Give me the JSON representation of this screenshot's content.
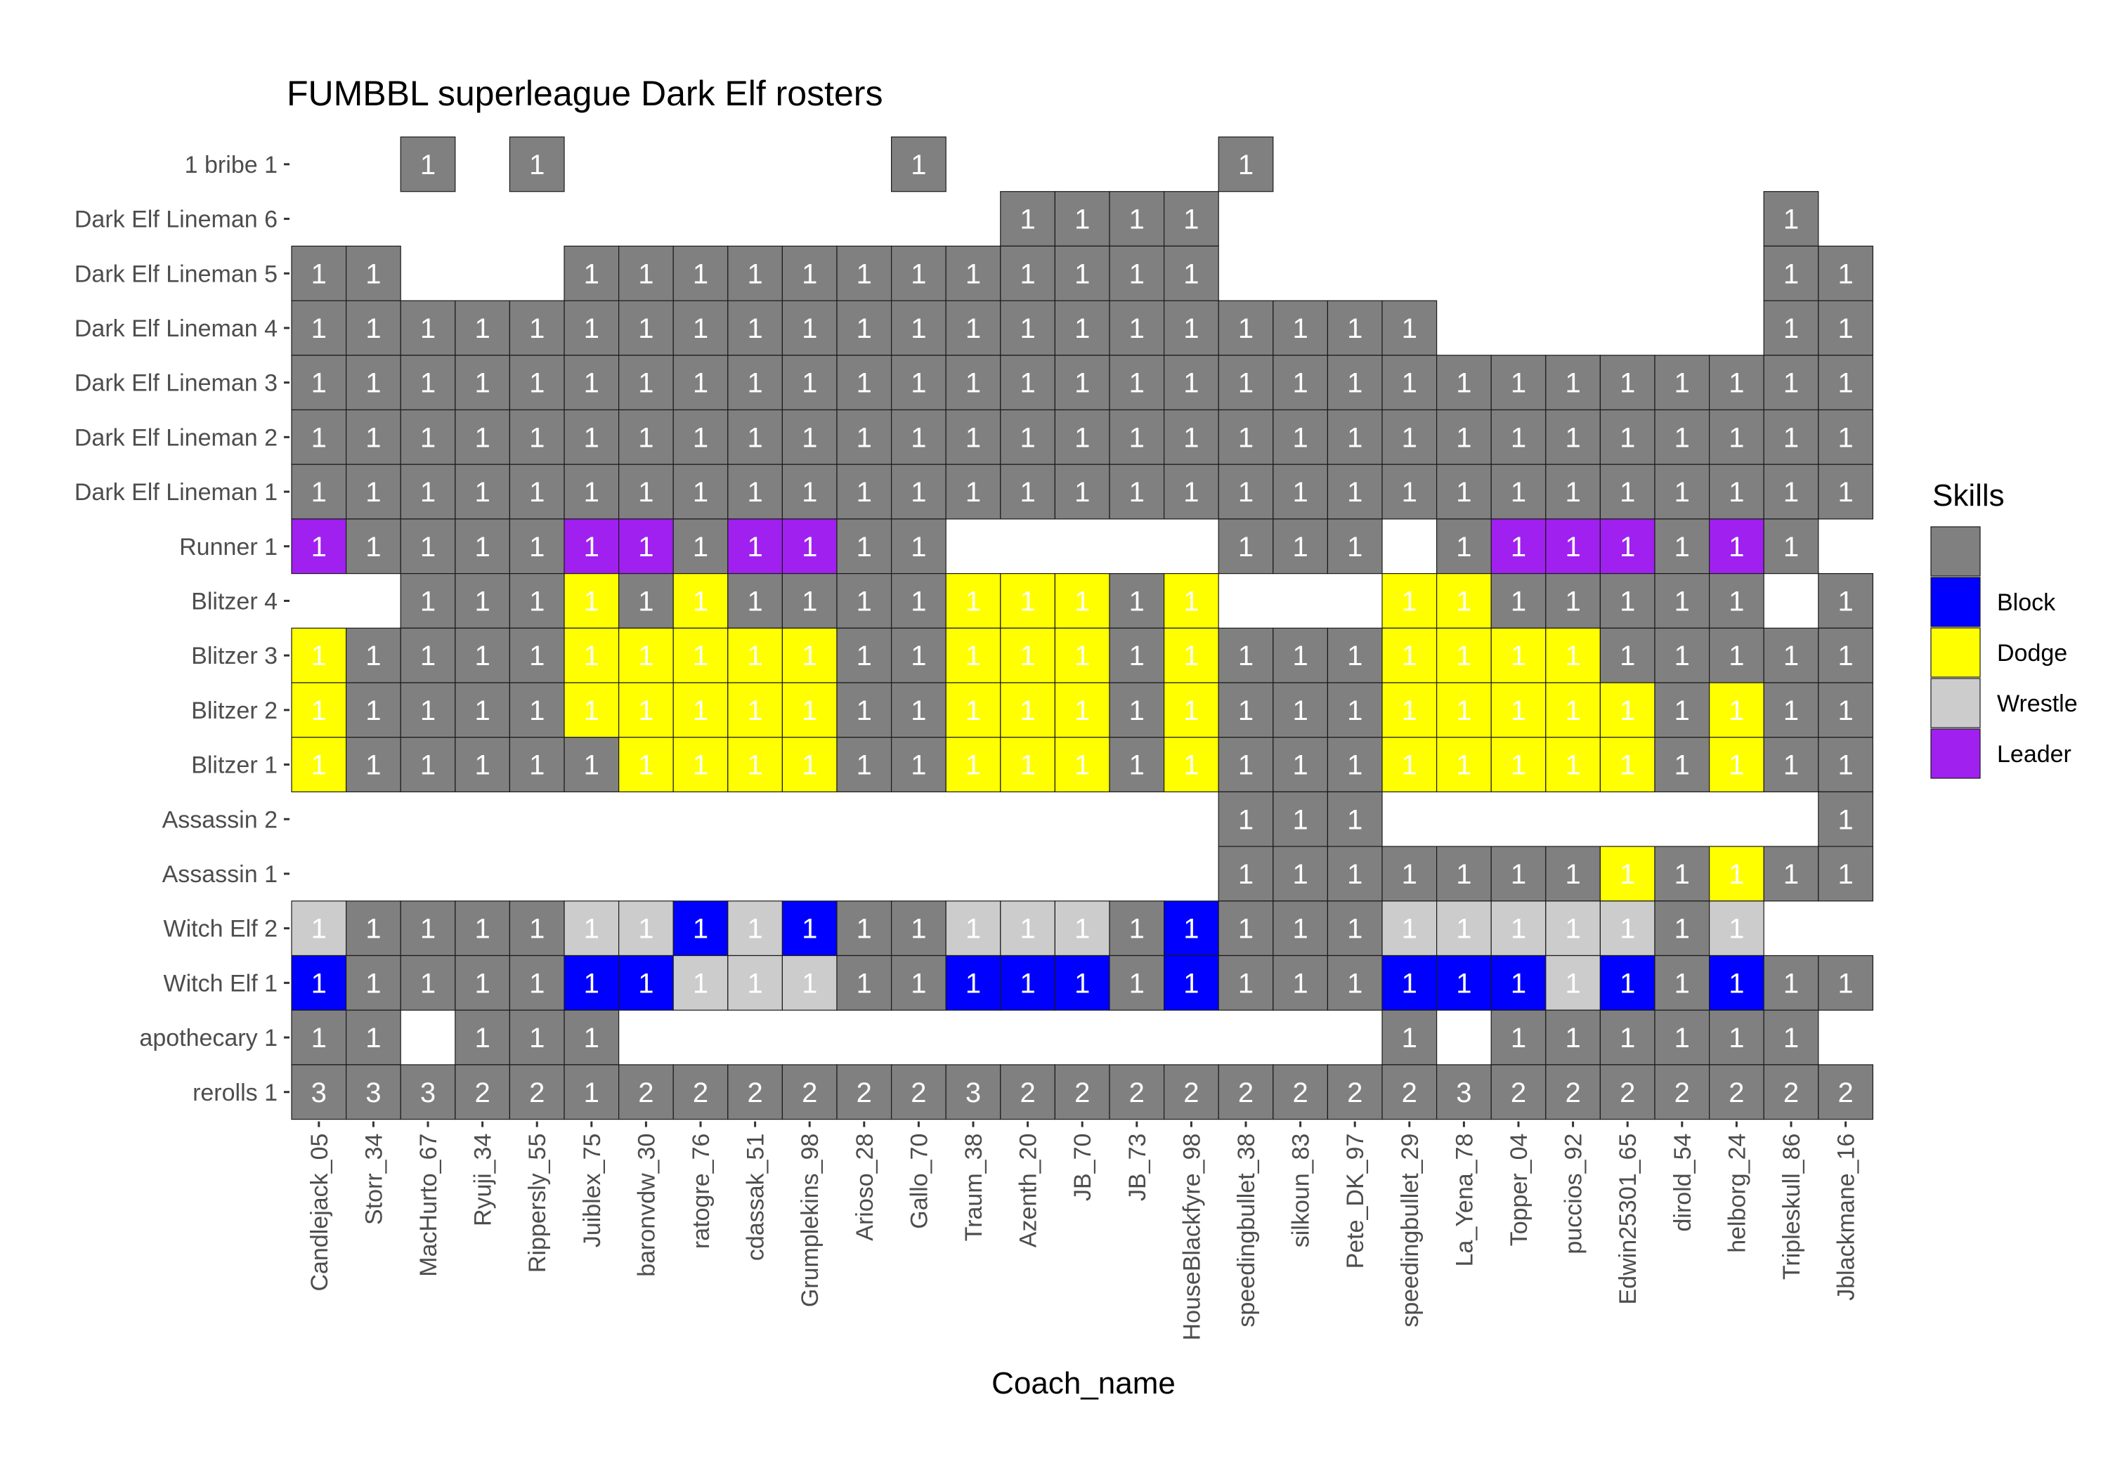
{
  "chart_data": {
    "type": "heatmap",
    "title": "FUMBBL superleague Dark Elf rosters",
    "xlabel": "Coach_name",
    "ylabel": "",
    "x": [
      "Candlejack_05",
      "Storr_34",
      "MacHurto_67",
      "Ryuji_34",
      "Rippersly_55",
      "Juiblex_75",
      "baronvdw_30",
      "ratogre_76",
      "cdassak_51",
      "Grumplekins_98",
      "Arioso_28",
      "Gallo_70",
      "Traum_38",
      "Azenth_20",
      "JB_70",
      "JB_73",
      "HouseBlackfyre_98",
      "speedingbullet_38",
      "silkoun_83",
      "Pete_DK_97",
      "speedingbullet_29",
      "La_Yena_78",
      "Topper_04",
      "puccios_92",
      "Edwin25301_65",
      "dirold_54",
      "helborg_24",
      "Tripleskull_86",
      "Jblackmane_16"
    ],
    "y": [
      "1 bribe 1",
      "Dark Elf Lineman 6",
      "Dark Elf Lineman 5",
      "Dark Elf Lineman 4",
      "Dark Elf Lineman 3",
      "Dark Elf Lineman 2",
      "Dark Elf Lineman 1",
      "Runner 1",
      "Blitzer 4",
      "Blitzer 3",
      "Blitzer 2",
      "Blitzer 1",
      "Assassin 2",
      "Assassin 1",
      "Witch Elf 2",
      "Witch Elf 1",
      "apothecary 1",
      "rerolls 1"
    ],
    "legend": {
      "title": "Skills",
      "position": "right",
      "entries": [
        {
          "code": "N",
          "label": "",
          "color": "#808080"
        },
        {
          "code": "B",
          "label": "Block",
          "color": "#0000ff"
        },
        {
          "code": "D",
          "label": "Dodge",
          "color": "#ffff00"
        },
        {
          "code": "W",
          "label": "Wrestle",
          "color": "#cccccc"
        },
        {
          "code": "L",
          "label": "Leader",
          "color": "#a020f0"
        }
      ]
    },
    "grid": false,
    "rows": [
      {
        "label": "1 bribe 1",
        "values": [
          ".",
          ".",
          "N1",
          ".",
          "N1",
          ".",
          ".",
          ".",
          ".",
          ".",
          ".",
          "N1",
          ".",
          ".",
          ".",
          ".",
          ".",
          "N1",
          ".",
          ".",
          ".",
          ".",
          ".",
          ".",
          ".",
          ".",
          ".",
          ".",
          "."
        ]
      },
      {
        "label": "Dark Elf Lineman 6",
        "values": [
          ".",
          ".",
          ".",
          ".",
          ".",
          ".",
          ".",
          ".",
          ".",
          ".",
          ".",
          ".",
          ".",
          "N1",
          "N1",
          "N1",
          "N1",
          ".",
          ".",
          ".",
          ".",
          ".",
          ".",
          ".",
          ".",
          ".",
          ".",
          "N1",
          "."
        ]
      },
      {
        "label": "Dark Elf Lineman 5",
        "values": [
          "N1",
          "N1",
          ".",
          ".",
          ".",
          "N1",
          "N1",
          "N1",
          "N1",
          "N1",
          "N1",
          "N1",
          "N1",
          "N1",
          "N1",
          "N1",
          "N1",
          ".",
          ".",
          ".",
          ".",
          ".",
          ".",
          ".",
          ".",
          ".",
          ".",
          "N1",
          "N1"
        ]
      },
      {
        "label": "Dark Elf Lineman 4",
        "values": [
          "N1",
          "N1",
          "N1",
          "N1",
          "N1",
          "N1",
          "N1",
          "N1",
          "N1",
          "N1",
          "N1",
          "N1",
          "N1",
          "N1",
          "N1",
          "N1",
          "N1",
          "N1",
          "N1",
          "N1",
          "N1",
          ".",
          ".",
          ".",
          ".",
          ".",
          ".",
          "N1",
          "N1"
        ]
      },
      {
        "label": "Dark Elf Lineman 3",
        "values": [
          "N1",
          "N1",
          "N1",
          "N1",
          "N1",
          "N1",
          "N1",
          "N1",
          "N1",
          "N1",
          "N1",
          "N1",
          "N1",
          "N1",
          "N1",
          "N1",
          "N1",
          "N1",
          "N1",
          "N1",
          "N1",
          "N1",
          "N1",
          "N1",
          "N1",
          "N1",
          "N1",
          "N1",
          "N1"
        ]
      },
      {
        "label": "Dark Elf Lineman 2",
        "values": [
          "N1",
          "N1",
          "N1",
          "N1",
          "N1",
          "N1",
          "N1",
          "N1",
          "N1",
          "N1",
          "N1",
          "N1",
          "N1",
          "N1",
          "N1",
          "N1",
          "N1",
          "N1",
          "N1",
          "N1",
          "N1",
          "N1",
          "N1",
          "N1",
          "N1",
          "N1",
          "N1",
          "N1",
          "N1"
        ]
      },
      {
        "label": "Dark Elf Lineman 1",
        "values": [
          "N1",
          "N1",
          "N1",
          "N1",
          "N1",
          "N1",
          "N1",
          "N1",
          "N1",
          "N1",
          "N1",
          "N1",
          "N1",
          "N1",
          "N1",
          "N1",
          "N1",
          "N1",
          "N1",
          "N1",
          "N1",
          "N1",
          "N1",
          "N1",
          "N1",
          "N1",
          "N1",
          "N1",
          "N1"
        ]
      },
      {
        "label": "Runner 1",
        "values": [
          "L1",
          "N1",
          "N1",
          "N1",
          "N1",
          "L1",
          "L1",
          "N1",
          "L1",
          "L1",
          "N1",
          "N1",
          ".",
          ".",
          ".",
          ".",
          ".",
          "N1",
          "N1",
          "N1",
          ".",
          "N1",
          "L1",
          "L1",
          "L1",
          "N1",
          "L1",
          "N1",
          "."
        ]
      },
      {
        "label": "Blitzer 4",
        "values": [
          ".",
          ".",
          "N1",
          "N1",
          "N1",
          "D1",
          "N1",
          "D1",
          "N1",
          "N1",
          "N1",
          "N1",
          "D1",
          "D1",
          "D1",
          "N1",
          "D1",
          ".",
          ".",
          ".",
          "D1",
          "D1",
          "N1",
          "N1",
          "N1",
          "N1",
          "N1",
          ".",
          "N1"
        ]
      },
      {
        "label": "Blitzer 3",
        "values": [
          "D1",
          "N1",
          "N1",
          "N1",
          "N1",
          "D1",
          "D1",
          "D1",
          "D1",
          "D1",
          "N1",
          "N1",
          "D1",
          "D1",
          "D1",
          "N1",
          "D1",
          "N1",
          "N1",
          "N1",
          "D1",
          "D1",
          "D1",
          "D1",
          "N1",
          "N1",
          "N1",
          "N1",
          "N1"
        ]
      },
      {
        "label": "Blitzer 2",
        "values": [
          "D1",
          "N1",
          "N1",
          "N1",
          "N1",
          "D1",
          "D1",
          "D1",
          "D1",
          "D1",
          "N1",
          "N1",
          "D1",
          "D1",
          "D1",
          "N1",
          "D1",
          "N1",
          "N1",
          "N1",
          "D1",
          "D1",
          "D1",
          "D1",
          "D1",
          "N1",
          "D1",
          "N1",
          "N1"
        ]
      },
      {
        "label": "Blitzer 1",
        "values": [
          "D1",
          "N1",
          "N1",
          "N1",
          "N1",
          "N1",
          "D1",
          "D1",
          "D1",
          "D1",
          "N1",
          "N1",
          "D1",
          "D1",
          "D1",
          "N1",
          "D1",
          "N1",
          "N1",
          "N1",
          "D1",
          "D1",
          "D1",
          "D1",
          "D1",
          "N1",
          "D1",
          "N1",
          "N1"
        ]
      },
      {
        "label": "Assassin 2",
        "values": [
          ".",
          ".",
          ".",
          ".",
          ".",
          ".",
          ".",
          ".",
          ".",
          ".",
          ".",
          ".",
          ".",
          ".",
          ".",
          ".",
          ".",
          "N1",
          "N1",
          "N1",
          ".",
          ".",
          ".",
          ".",
          ".",
          ".",
          ".",
          ".",
          "N1"
        ]
      },
      {
        "label": "Assassin 1",
        "values": [
          ".",
          ".",
          ".",
          ".",
          ".",
          ".",
          ".",
          ".",
          ".",
          ".",
          ".",
          ".",
          ".",
          ".",
          ".",
          ".",
          ".",
          "N1",
          "N1",
          "N1",
          "N1",
          "N1",
          "N1",
          "N1",
          "D1",
          "N1",
          "D1",
          "N1",
          "N1"
        ]
      },
      {
        "label": "Witch Elf 2",
        "values": [
          "W1",
          "N1",
          "N1",
          "N1",
          "N1",
          "W1",
          "W1",
          "B1",
          "W1",
          "B1",
          "N1",
          "N1",
          "W1",
          "W1",
          "W1",
          "N1",
          "B1",
          "N1",
          "N1",
          "N1",
          "W1",
          "W1",
          "W1",
          "W1",
          "W1",
          "N1",
          "W1",
          ".",
          "."
        ]
      },
      {
        "label": "Witch Elf 1",
        "values": [
          "B1",
          "N1",
          "N1",
          "N1",
          "N1",
          "B1",
          "B1",
          "W1",
          "W1",
          "W1",
          "N1",
          "N1",
          "B1",
          "B1",
          "B1",
          "N1",
          "B1",
          "N1",
          "N1",
          "N1",
          "B1",
          "B1",
          "B1",
          "W1",
          "B1",
          "N1",
          "B1",
          "N1",
          "N1"
        ]
      },
      {
        "label": "apothecary 1",
        "values": [
          "N1",
          "N1",
          ".",
          "N1",
          "N1",
          "N1",
          ".",
          ".",
          ".",
          ".",
          ".",
          ".",
          ".",
          ".",
          ".",
          ".",
          ".",
          ".",
          ".",
          ".",
          "N1",
          ".",
          "N1",
          "N1",
          "N1",
          "N1",
          "N1",
          "N1",
          "."
        ]
      },
      {
        "label": "rerolls 1",
        "values": [
          "N3",
          "N3",
          "N3",
          "N2",
          "N2",
          "N1",
          "N2",
          "N2",
          "N2",
          "N2",
          "N2",
          "N2",
          "N3",
          "N2",
          "N2",
          "N2",
          "N2",
          "N2",
          "N2",
          "N2",
          "N2",
          "N3",
          "N2",
          "N2",
          "N2",
          "N2",
          "N2",
          "N2",
          "N2"
        ]
      }
    ]
  }
}
